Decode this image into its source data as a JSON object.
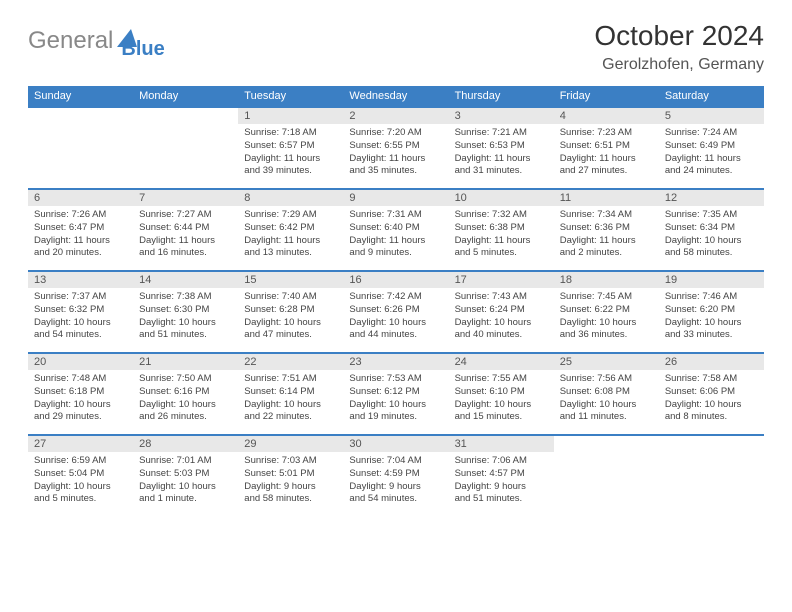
{
  "logo": {
    "part1": "General",
    "part2": "Blue"
  },
  "title": "October 2024",
  "location": "Gerolzhofen, Germany",
  "colors": {
    "header_bg": "#3b7fc4",
    "header_text": "#ffffff",
    "daynum_bg": "#e8e8e8",
    "daynum_text": "#555555",
    "body_text": "#444444",
    "logo_gray": "#888888",
    "logo_blue": "#3b7fc4"
  },
  "day_headers": [
    "Sunday",
    "Monday",
    "Tuesday",
    "Wednesday",
    "Thursday",
    "Friday",
    "Saturday"
  ],
  "weeks": [
    [
      null,
      null,
      {
        "num": "1",
        "sunrise": "Sunrise: 7:18 AM",
        "sunset": "Sunset: 6:57 PM",
        "daylight1": "Daylight: 11 hours",
        "daylight2": "and 39 minutes."
      },
      {
        "num": "2",
        "sunrise": "Sunrise: 7:20 AM",
        "sunset": "Sunset: 6:55 PM",
        "daylight1": "Daylight: 11 hours",
        "daylight2": "and 35 minutes."
      },
      {
        "num": "3",
        "sunrise": "Sunrise: 7:21 AM",
        "sunset": "Sunset: 6:53 PM",
        "daylight1": "Daylight: 11 hours",
        "daylight2": "and 31 minutes."
      },
      {
        "num": "4",
        "sunrise": "Sunrise: 7:23 AM",
        "sunset": "Sunset: 6:51 PM",
        "daylight1": "Daylight: 11 hours",
        "daylight2": "and 27 minutes."
      },
      {
        "num": "5",
        "sunrise": "Sunrise: 7:24 AM",
        "sunset": "Sunset: 6:49 PM",
        "daylight1": "Daylight: 11 hours",
        "daylight2": "and 24 minutes."
      }
    ],
    [
      {
        "num": "6",
        "sunrise": "Sunrise: 7:26 AM",
        "sunset": "Sunset: 6:47 PM",
        "daylight1": "Daylight: 11 hours",
        "daylight2": "and 20 minutes."
      },
      {
        "num": "7",
        "sunrise": "Sunrise: 7:27 AM",
        "sunset": "Sunset: 6:44 PM",
        "daylight1": "Daylight: 11 hours",
        "daylight2": "and 16 minutes."
      },
      {
        "num": "8",
        "sunrise": "Sunrise: 7:29 AM",
        "sunset": "Sunset: 6:42 PM",
        "daylight1": "Daylight: 11 hours",
        "daylight2": "and 13 minutes."
      },
      {
        "num": "9",
        "sunrise": "Sunrise: 7:31 AM",
        "sunset": "Sunset: 6:40 PM",
        "daylight1": "Daylight: 11 hours",
        "daylight2": "and 9 minutes."
      },
      {
        "num": "10",
        "sunrise": "Sunrise: 7:32 AM",
        "sunset": "Sunset: 6:38 PM",
        "daylight1": "Daylight: 11 hours",
        "daylight2": "and 5 minutes."
      },
      {
        "num": "11",
        "sunrise": "Sunrise: 7:34 AM",
        "sunset": "Sunset: 6:36 PM",
        "daylight1": "Daylight: 11 hours",
        "daylight2": "and 2 minutes."
      },
      {
        "num": "12",
        "sunrise": "Sunrise: 7:35 AM",
        "sunset": "Sunset: 6:34 PM",
        "daylight1": "Daylight: 10 hours",
        "daylight2": "and 58 minutes."
      }
    ],
    [
      {
        "num": "13",
        "sunrise": "Sunrise: 7:37 AM",
        "sunset": "Sunset: 6:32 PM",
        "daylight1": "Daylight: 10 hours",
        "daylight2": "and 54 minutes."
      },
      {
        "num": "14",
        "sunrise": "Sunrise: 7:38 AM",
        "sunset": "Sunset: 6:30 PM",
        "daylight1": "Daylight: 10 hours",
        "daylight2": "and 51 minutes."
      },
      {
        "num": "15",
        "sunrise": "Sunrise: 7:40 AM",
        "sunset": "Sunset: 6:28 PM",
        "daylight1": "Daylight: 10 hours",
        "daylight2": "and 47 minutes."
      },
      {
        "num": "16",
        "sunrise": "Sunrise: 7:42 AM",
        "sunset": "Sunset: 6:26 PM",
        "daylight1": "Daylight: 10 hours",
        "daylight2": "and 44 minutes."
      },
      {
        "num": "17",
        "sunrise": "Sunrise: 7:43 AM",
        "sunset": "Sunset: 6:24 PM",
        "daylight1": "Daylight: 10 hours",
        "daylight2": "and 40 minutes."
      },
      {
        "num": "18",
        "sunrise": "Sunrise: 7:45 AM",
        "sunset": "Sunset: 6:22 PM",
        "daylight1": "Daylight: 10 hours",
        "daylight2": "and 36 minutes."
      },
      {
        "num": "19",
        "sunrise": "Sunrise: 7:46 AM",
        "sunset": "Sunset: 6:20 PM",
        "daylight1": "Daylight: 10 hours",
        "daylight2": "and 33 minutes."
      }
    ],
    [
      {
        "num": "20",
        "sunrise": "Sunrise: 7:48 AM",
        "sunset": "Sunset: 6:18 PM",
        "daylight1": "Daylight: 10 hours",
        "daylight2": "and 29 minutes."
      },
      {
        "num": "21",
        "sunrise": "Sunrise: 7:50 AM",
        "sunset": "Sunset: 6:16 PM",
        "daylight1": "Daylight: 10 hours",
        "daylight2": "and 26 minutes."
      },
      {
        "num": "22",
        "sunrise": "Sunrise: 7:51 AM",
        "sunset": "Sunset: 6:14 PM",
        "daylight1": "Daylight: 10 hours",
        "daylight2": "and 22 minutes."
      },
      {
        "num": "23",
        "sunrise": "Sunrise: 7:53 AM",
        "sunset": "Sunset: 6:12 PM",
        "daylight1": "Daylight: 10 hours",
        "daylight2": "and 19 minutes."
      },
      {
        "num": "24",
        "sunrise": "Sunrise: 7:55 AM",
        "sunset": "Sunset: 6:10 PM",
        "daylight1": "Daylight: 10 hours",
        "daylight2": "and 15 minutes."
      },
      {
        "num": "25",
        "sunrise": "Sunrise: 7:56 AM",
        "sunset": "Sunset: 6:08 PM",
        "daylight1": "Daylight: 10 hours",
        "daylight2": "and 11 minutes."
      },
      {
        "num": "26",
        "sunrise": "Sunrise: 7:58 AM",
        "sunset": "Sunset: 6:06 PM",
        "daylight1": "Daylight: 10 hours",
        "daylight2": "and 8 minutes."
      }
    ],
    [
      {
        "num": "27",
        "sunrise": "Sunrise: 6:59 AM",
        "sunset": "Sunset: 5:04 PM",
        "daylight1": "Daylight: 10 hours",
        "daylight2": "and 5 minutes."
      },
      {
        "num": "28",
        "sunrise": "Sunrise: 7:01 AM",
        "sunset": "Sunset: 5:03 PM",
        "daylight1": "Daylight: 10 hours",
        "daylight2": "and 1 minute."
      },
      {
        "num": "29",
        "sunrise": "Sunrise: 7:03 AM",
        "sunset": "Sunset: 5:01 PM",
        "daylight1": "Daylight: 9 hours",
        "daylight2": "and 58 minutes."
      },
      {
        "num": "30",
        "sunrise": "Sunrise: 7:04 AM",
        "sunset": "Sunset: 4:59 PM",
        "daylight1": "Daylight: 9 hours",
        "daylight2": "and 54 minutes."
      },
      {
        "num": "31",
        "sunrise": "Sunrise: 7:06 AM",
        "sunset": "Sunset: 4:57 PM",
        "daylight1": "Daylight: 9 hours",
        "daylight2": "and 51 minutes."
      },
      null,
      null
    ]
  ]
}
